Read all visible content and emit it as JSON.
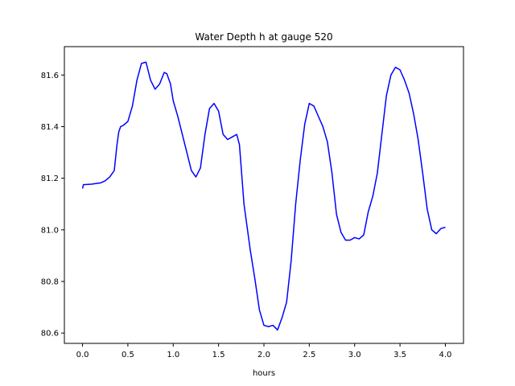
{
  "chart_data": {
    "type": "line",
    "title": "Water Depth h at gauge 520",
    "xlabel": "hours",
    "ylabel": "",
    "xlim": [
      -0.2,
      4.2
    ],
    "ylim": [
      80.56,
      81.71
    ],
    "xticks": [
      0.0,
      0.5,
      1.0,
      1.5,
      2.0,
      2.5,
      3.0,
      3.5,
      4.0
    ],
    "xtick_labels": [
      "0.0",
      "0.5",
      "1.0",
      "1.5",
      "2.0",
      "2.5",
      "3.0",
      "3.5",
      "4.0"
    ],
    "yticks": [
      80.6,
      80.8,
      81.0,
      81.2,
      81.4,
      81.6
    ],
    "ytick_labels": [
      "80.6",
      "80.8",
      "81.0",
      "81.2",
      "81.4",
      "81.6"
    ],
    "grid": false,
    "series": [
      {
        "name": "",
        "color": "#0000ff",
        "x": [
          0.0,
          0.01,
          0.1,
          0.2,
          0.25,
          0.3,
          0.35,
          0.38,
          0.4,
          0.42,
          0.45,
          0.5,
          0.55,
          0.6,
          0.65,
          0.7,
          0.75,
          0.8,
          0.85,
          0.9,
          0.93,
          0.97,
          1.0,
          1.05,
          1.1,
          1.15,
          1.2,
          1.25,
          1.3,
          1.35,
          1.4,
          1.45,
          1.5,
          1.55,
          1.6,
          1.65,
          1.7,
          1.73,
          1.78,
          1.85,
          1.9,
          1.95,
          2.0,
          2.05,
          2.1,
          2.15,
          2.2,
          2.25,
          2.3,
          2.35,
          2.4,
          2.45,
          2.5,
          2.55,
          2.6,
          2.65,
          2.7,
          2.75,
          2.8,
          2.85,
          2.9,
          2.95,
          3.0,
          3.05,
          3.1,
          3.15,
          3.2,
          3.25,
          3.3,
          3.35,
          3.4,
          3.45,
          3.5,
          3.55,
          3.6,
          3.65,
          3.7,
          3.75,
          3.8,
          3.85,
          3.9,
          3.95,
          4.0
        ],
        "y": [
          81.16,
          81.175,
          81.177,
          81.182,
          81.19,
          81.205,
          81.23,
          81.33,
          81.38,
          81.4,
          81.405,
          81.42,
          81.48,
          81.58,
          81.645,
          81.65,
          81.58,
          81.545,
          81.565,
          81.61,
          81.605,
          81.565,
          81.5,
          81.44,
          81.37,
          81.3,
          81.23,
          81.205,
          81.24,
          81.37,
          81.47,
          81.49,
          81.46,
          81.37,
          81.35,
          81.36,
          81.37,
          81.33,
          81.1,
          80.92,
          80.81,
          80.69,
          80.63,
          80.625,
          80.63,
          80.612,
          80.66,
          80.72,
          80.88,
          81.1,
          81.27,
          81.41,
          81.49,
          81.48,
          81.44,
          81.4,
          81.34,
          81.22,
          81.06,
          80.99,
          80.96,
          80.96,
          80.97,
          80.965,
          80.98,
          81.07,
          81.13,
          81.22,
          81.37,
          81.52,
          81.6,
          81.63,
          81.62,
          81.58,
          81.53,
          81.45,
          81.35,
          81.22,
          81.08,
          81.0,
          80.985,
          81.005,
          81.01
        ]
      }
    ]
  }
}
